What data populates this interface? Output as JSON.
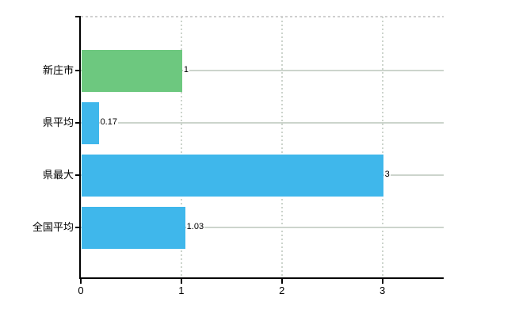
{
  "chart_data": {
    "type": "bar",
    "orientation": "horizontal",
    "title": "",
    "categories": [
      "新庄市",
      "県平均",
      "県最大",
      "全国平均"
    ],
    "values": [
      1,
      0.17,
      3,
      1.03
    ],
    "value_labels": [
      "1",
      "0.17",
      "3",
      "1.03"
    ],
    "bar_colors": [
      "#6dc87f",
      "#3fb7eb",
      "#3fb7eb",
      "#3fb7eb"
    ],
    "x_ticks": [
      0,
      1,
      2,
      3
    ],
    "x_tick_labels": [
      "0",
      "1",
      "2",
      "3"
    ],
    "xlim": [
      0,
      3.61
    ],
    "ylabel": "",
    "xlabel": "",
    "grid": true,
    "legend": "none",
    "gridline_color": "#ccd4cc",
    "axis_color": "#000000",
    "background_color": "#ffffff"
  }
}
